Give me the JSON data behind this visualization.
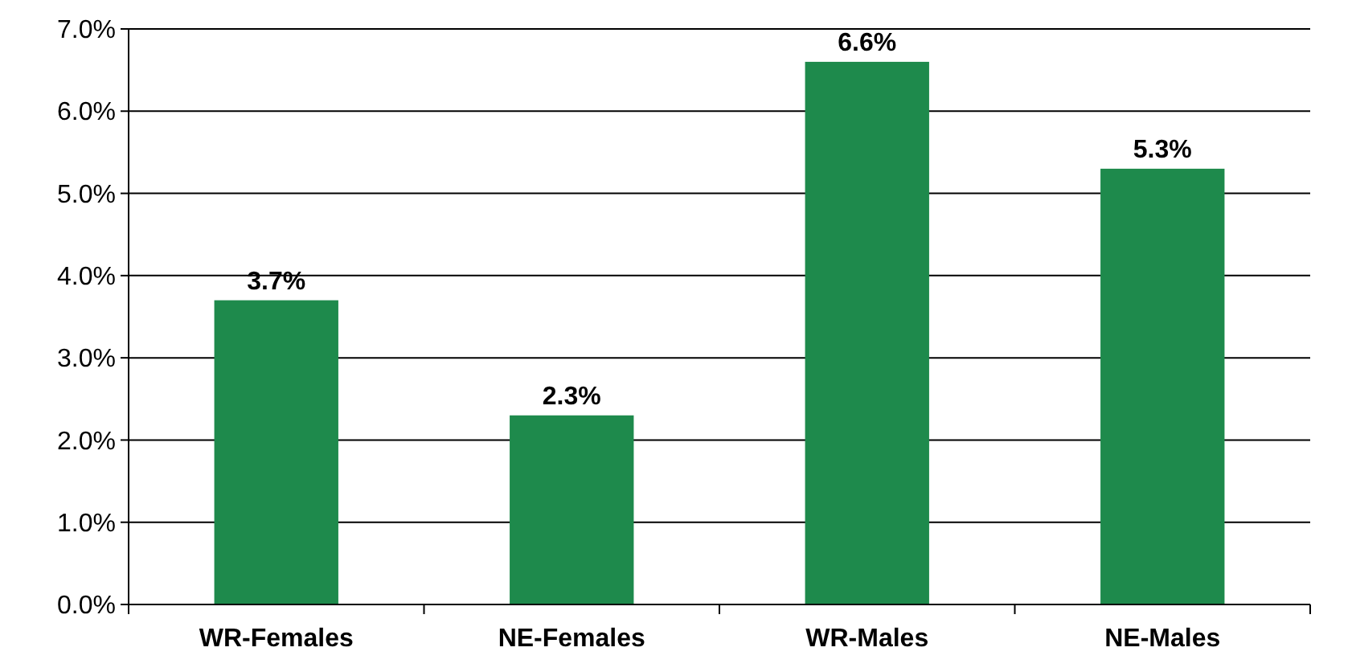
{
  "chart_data": {
    "type": "bar",
    "categories": [
      "WR-Females",
      "NE-Females",
      "WR-Males",
      "NE-Males"
    ],
    "values": [
      3.7,
      2.3,
      6.6,
      5.3
    ],
    "value_labels": [
      "3.7%",
      "2.3%",
      "6.6%",
      "5.3%"
    ],
    "color": "#1e8a4c",
    "ylim": [
      0,
      7
    ],
    "yticks": [
      {
        "value": 0,
        "label": "0.0%"
      },
      {
        "value": 1,
        "label": "1.0%"
      },
      {
        "value": 2,
        "label": "2.0%"
      },
      {
        "value": 3,
        "label": "3.0%"
      },
      {
        "value": 4,
        "label": "4.0%"
      },
      {
        "value": 5,
        "label": "5.0%"
      },
      {
        "value": 6,
        "label": "6.0%"
      },
      {
        "value": 7,
        "label": "7.0%"
      }
    ],
    "grid": "y"
  }
}
